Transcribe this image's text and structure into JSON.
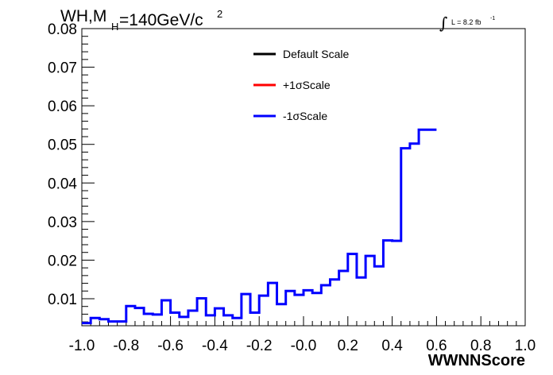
{
  "chart_data": {
    "type": "line",
    "title": {
      "main": "WH,M",
      "subscript": "H",
      "rest": "=140GeV/c",
      "superscript": "2"
    },
    "luminosity": {
      "integral_symbol": "∫",
      "text": "L = 8.2 fb",
      "superscript": "-1"
    },
    "xlabel": "WWNNScore",
    "ylabel": "",
    "xlim": [
      -1.0,
      1.0
    ],
    "ylim": [
      0.003,
      0.08
    ],
    "x_ticks": [
      "-1.0",
      "-0.8",
      "-0.6",
      "-0.4",
      "-0.2",
      "-0.0",
      "0.2",
      "0.4",
      "0.6",
      "0.8",
      "1.0"
    ],
    "y_ticks": [
      "0.01",
      "0.02",
      "0.03",
      "0.04",
      "0.05",
      "0.06",
      "0.07",
      "0.08"
    ],
    "bin_edges_start": -1.0,
    "bin_width": 0.04,
    "legend": [
      {
        "label": "Default Scale",
        "color": "#000000"
      },
      {
        "label": "+1σScale",
        "color": "#ff0000"
      },
      {
        "label": "-1σScale",
        "color": "#0000ff"
      }
    ],
    "series": [
      {
        "name": "-1σScale",
        "color": "#0000ff",
        "values": [
          0.0037,
          0.005,
          0.0047,
          0.0041,
          0.0041,
          0.0081,
          0.0076,
          0.0061,
          0.0059,
          0.0096,
          0.0064,
          0.0053,
          0.0069,
          0.0101,
          0.0057,
          0.0075,
          0.0057,
          0.005,
          0.0112,
          0.0064,
          0.0108,
          0.0141,
          0.0086,
          0.012,
          0.011,
          0.0122,
          0.0115,
          0.0135,
          0.015,
          0.0172,
          0.0216,
          0.0155,
          0.0211,
          0.0184,
          0.0251,
          0.025,
          0.049,
          0.0502,
          0.0538,
          0.0538
        ]
      }
    ]
  }
}
